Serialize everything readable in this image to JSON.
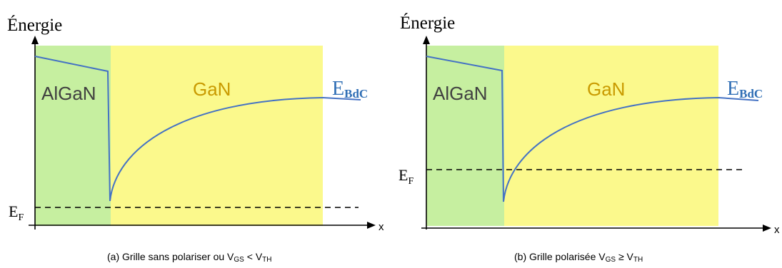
{
  "panels": [
    {
      "y_axis_label": "Énergie",
      "x_axis_label": "x",
      "region_left_label": "AlGaN",
      "region_right_label": "GaN",
      "band_label_main": "E",
      "band_label_sub": "BdC",
      "fermi_label_main": "E",
      "fermi_label_sub": "F",
      "caption_prefix": "(a) Grille sans polariser ou V",
      "caption_sub1": "GS",
      "caption_mid": " < V",
      "caption_sub2": "TH",
      "fermi_level": "below conduction band minimum"
    },
    {
      "y_axis_label": "Énergie",
      "x_axis_label": "x",
      "region_left_label": "AlGaN",
      "region_right_label": "GaN",
      "band_label_main": "E",
      "band_label_sub": "BdC",
      "fermi_label_main": "E",
      "fermi_label_sub": "F",
      "caption_prefix": "(b) Grille polarisée V",
      "caption_sub1": "GS",
      "caption_mid": " ≥ V",
      "caption_sub2": "TH",
      "fermi_level": "above conduction band minimum"
    }
  ],
  "colors": {
    "algan_region": "#c6efa0",
    "gan_region": "#fbf98c",
    "band_curve": "#4472c4",
    "band_label": "#2f6eb5",
    "gan_label": "#c99a00",
    "algan_label": "#404040",
    "axis": "#000000",
    "fermi_line": "#000000"
  }
}
